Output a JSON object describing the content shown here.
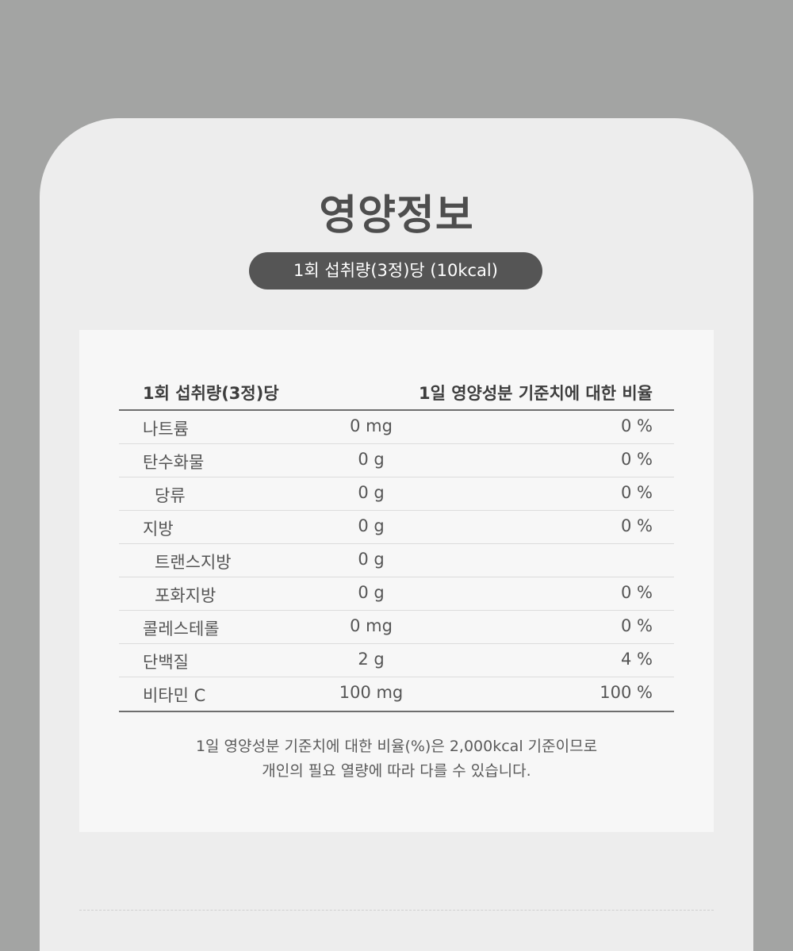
{
  "title": "영양정보",
  "serving_badge": "1회 섭취량(3정)당 (10kcal)",
  "table": {
    "header_left": "1회 섭취량(3정)당",
    "header_right": "1일 영양성분 기준치에 대한 비율",
    "rows": [
      {
        "name": "나트륨",
        "amount": "0 mg",
        "percent": "0 %",
        "indent": false
      },
      {
        "name": "탄수화물",
        "amount": "0 g",
        "percent": "0 %",
        "indent": false
      },
      {
        "name": "당류",
        "amount": "0 g",
        "percent": "0 %",
        "indent": true
      },
      {
        "name": "지방",
        "amount": "0 g",
        "percent": "0 %",
        "indent": false
      },
      {
        "name": "트랜스지방",
        "amount": "0 g",
        "percent": "",
        "indent": true
      },
      {
        "name": "포화지방",
        "amount": "0 g",
        "percent": "0 %",
        "indent": true
      },
      {
        "name": "콜레스테롤",
        "amount": "0 mg",
        "percent": "0 %",
        "indent": false
      },
      {
        "name": "단백질",
        "amount": "2 g",
        "percent": "4 %",
        "indent": false
      },
      {
        "name": "비타민 C",
        "amount": "100 mg",
        "percent": "100 %",
        "indent": false
      }
    ]
  },
  "footnote": {
    "line1": "1일 영양성분 기준치에 대한 비율(%)은 2,000kcal 기준이므로",
    "line2": "개인의 필요 열량에 따라 다를 수 있습니다."
  },
  "colors": {
    "background": "#a3a4a3",
    "card": "#ededed",
    "panel": "#f7f7f7",
    "badge": "#555555",
    "text": "#474747"
  }
}
